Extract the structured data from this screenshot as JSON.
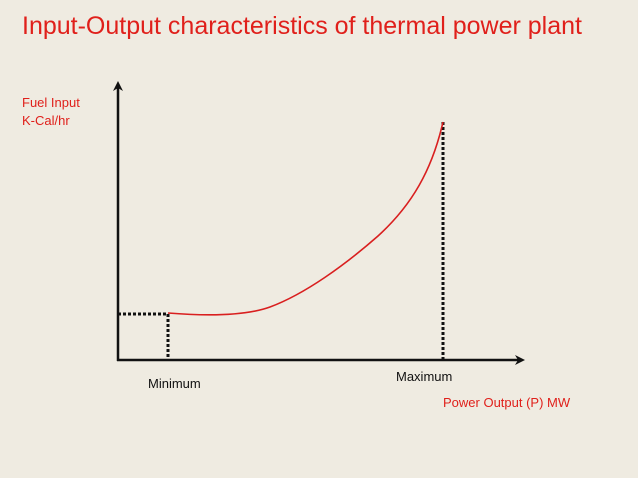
{
  "title": "Input-Output characteristics of thermal power plant",
  "y_axis": {
    "label_line1": "Fuel Input",
    "label_line2": "K-Cal/hr"
  },
  "x_axis": {
    "label": "Power Output (P) MW"
  },
  "markers": {
    "minimum": "Minimum",
    "maximum": "Maximum"
  },
  "colors": {
    "background": "#efebe1",
    "title": "#e0201b",
    "axis_label": "#e0201b",
    "curve": "#d91f1f",
    "axis": "#111111",
    "dotted_line": "#111111"
  }
}
